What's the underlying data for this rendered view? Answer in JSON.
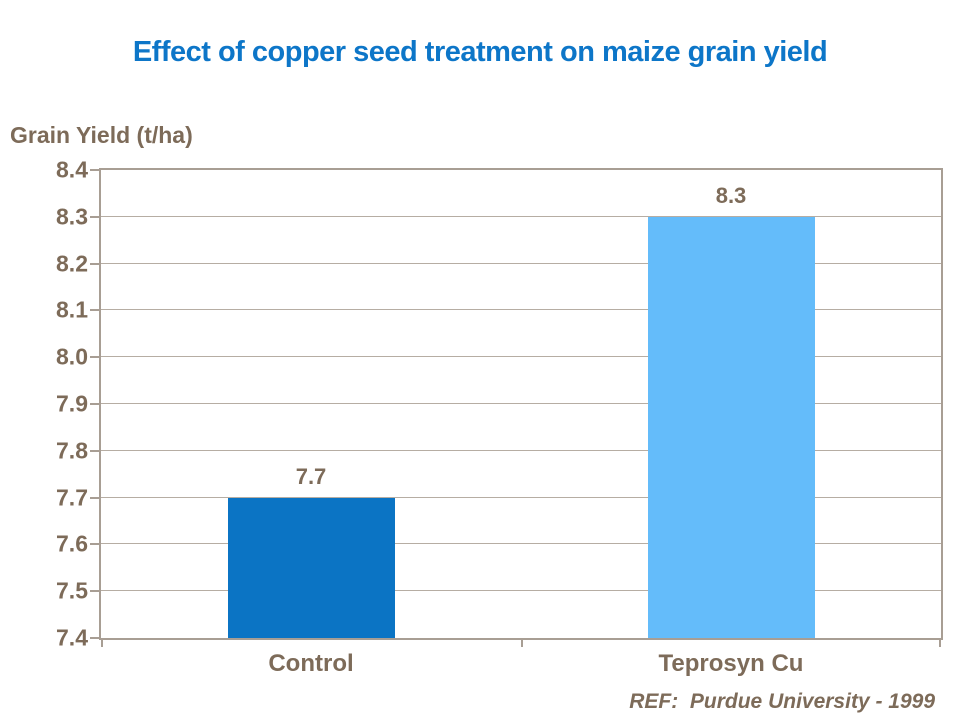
{
  "title": "Effect of copper seed treatment on maize grain yield",
  "axis_title": "Grain Yield (t/ha)",
  "ref_note": "REF:  Purdue University - 1999",
  "colors": {
    "title_blue": "#0d76c8",
    "label_brown": "#7d6b59",
    "axis_line": "#a89e94",
    "gridline": "#b6ada3",
    "control_bar": "#0b74c4",
    "teprosyn_bar": "#64bcfa"
  },
  "chart_data": {
    "type": "bar",
    "title": "Effect of copper seed treatment on maize grain yield",
    "ylabel": "Grain Yield (t/ha)",
    "xlabel": "",
    "categories": [
      "Control",
      "Teprosyn Cu"
    ],
    "values": [
      7.7,
      8.3
    ],
    "data_labels": [
      "7.7",
      "8.3"
    ],
    "bar_colors": [
      "#0b74c4",
      "#64bcfa"
    ],
    "ylim": [
      7.4,
      8.4
    ],
    "ytick_step": 0.1,
    "yticks": [
      "8.4",
      "8.3",
      "8.2",
      "8.1",
      "8.0",
      "7.9",
      "7.8",
      "7.7",
      "7.6",
      "7.5",
      "7.4"
    ],
    "grid": true,
    "legend": false,
    "annotation": "REF:  Purdue University - 1999"
  }
}
